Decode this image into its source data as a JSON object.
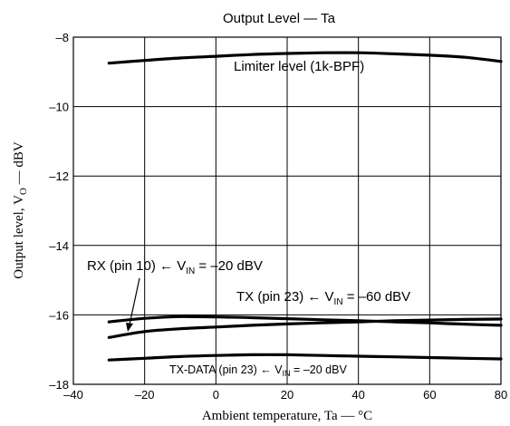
{
  "chart_data": {
    "type": "line",
    "title": "Output Level — Ta",
    "xlabel": "Ambient temperature, Ta — °C",
    "ylabel": {
      "main": "Output level, V",
      "sub": "O",
      "unit": " — dBV"
    },
    "xlim": [
      -40,
      80
    ],
    "ylim": [
      -18,
      -8
    ],
    "xticks": [
      -40,
      -20,
      0,
      20,
      40,
      60,
      80
    ],
    "yticks": [
      -18,
      -16,
      -14,
      -12,
      -10,
      -8
    ],
    "grid": true,
    "series": [
      {
        "name": "Limiter level (1k-BPF)",
        "x": [
          -30,
          -20,
          -10,
          0,
          10,
          20,
          30,
          40,
          50,
          60,
          70,
          80
        ],
        "y": [
          -8.75,
          -8.67,
          -8.6,
          -8.55,
          -8.5,
          -8.47,
          -8.45,
          -8.45,
          -8.48,
          -8.52,
          -8.58,
          -8.7
        ]
      },
      {
        "name": "RX (pin 10) ← VIN = −20 dBV",
        "x": [
          -30,
          -20,
          -10,
          0,
          10,
          20,
          30,
          40,
          50,
          60,
          70,
          80
        ],
        "y": [
          -16.2,
          -16.1,
          -16.05,
          -16.06,
          -16.08,
          -16.11,
          -16.14,
          -16.17,
          -16.2,
          -16.23,
          -16.27,
          -16.3
        ]
      },
      {
        "name": "TX (pin 23) ← VIN = −60 dBV",
        "x": [
          -30,
          -20,
          -10,
          0,
          10,
          20,
          30,
          40,
          50,
          60,
          70,
          80
        ],
        "y": [
          -16.65,
          -16.48,
          -16.4,
          -16.35,
          -16.3,
          -16.26,
          -16.23,
          -16.2,
          -16.17,
          -16.15,
          -16.13,
          -16.12
        ]
      },
      {
        "name": "TX-DATA (pin 23) ← VIN = −20 dBV",
        "x": [
          -30,
          -20,
          -10,
          0,
          10,
          20,
          30,
          40,
          50,
          60,
          70,
          80
        ],
        "y": [
          -17.3,
          -17.25,
          -17.2,
          -17.17,
          -17.15,
          -17.15,
          -17.17,
          -17.19,
          -17.21,
          -17.23,
          -17.25,
          -17.27
        ]
      }
    ],
    "annotations": {
      "limiter": "Limiter level (1k-BPF)",
      "rx": {
        "pre": "RX (pin 10) ← V",
        "sub": "IN",
        "post": " = –20 dBV"
      },
      "tx": {
        "pre": "TX (pin 23) ← V",
        "sub": "IN",
        "post": " = –60 dBV"
      },
      "txdata": {
        "pre": "TX-DATA (pin 23) ← V",
        "sub": "IN",
        "post": " = –20 dBV"
      }
    }
  }
}
